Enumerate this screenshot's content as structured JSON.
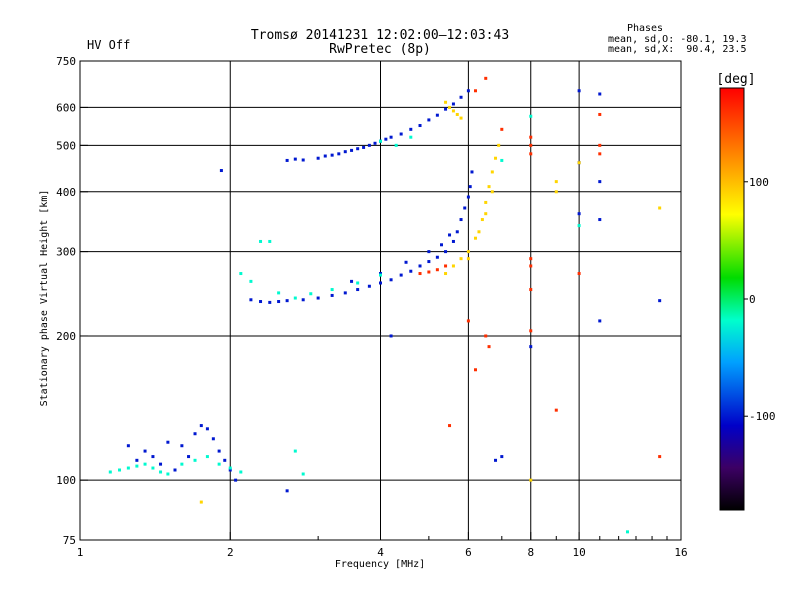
{
  "chart_data": {
    "type": "scatter",
    "title": "Tromsø 20141231 12:02:00–12:03:43",
    "subtitle": "RwPretec (8p)",
    "status_label": "HV Off",
    "status_color": "#ff0000",
    "phase_info": {
      "heading": "Phases",
      "line1": "mean, sd,O: -80.1, 19.3",
      "line2": "mean, sd,X:  90.4, 23.5"
    },
    "xlabel": "Frequency [MHz]",
    "ylabel": "Stationary phase Virtual Height [km]",
    "x_scale": "log",
    "y_scale": "log",
    "xlim": [
      1,
      16
    ],
    "ylim": [
      75,
      750
    ],
    "grid": true,
    "x_ticks": [
      1,
      2,
      4,
      6,
      8,
      10,
      16
    ],
    "x_tick_labels": [
      "1",
      "2",
      "4",
      "6",
      "8",
      "10",
      "16"
    ],
    "x_minor_ticks": [
      3,
      5,
      7,
      9,
      11,
      12,
      13,
      14,
      15
    ],
    "y_ticks": [
      75,
      100,
      200,
      300,
      400,
      500,
      600,
      750
    ],
    "y_tick_labels": [
      "75",
      "100",
      "200",
      "300",
      "400",
      "500",
      "600",
      "750"
    ],
    "colorbar": {
      "label": "[deg]",
      "range": [
        -180,
        180
      ],
      "ticks": [
        100,
        0,
        -100
      ],
      "tick_labels": [
        "100",
        "0",
        "-100"
      ]
    },
    "series": [
      {
        "phase_deg": -100,
        "points": [
          [
            2.6,
            465
          ],
          [
            2.7,
            468
          ],
          [
            2.8,
            466
          ],
          [
            3.0,
            470
          ],
          [
            3.1,
            475
          ],
          [
            3.2,
            477
          ],
          [
            3.3,
            480
          ],
          [
            3.4,
            485
          ],
          [
            3.5,
            488
          ],
          [
            3.6,
            492
          ],
          [
            3.7,
            495
          ],
          [
            3.8,
            500
          ],
          [
            3.9,
            505
          ],
          [
            4.0,
            510
          ],
          [
            4.1,
            515
          ],
          [
            4.2,
            520
          ],
          [
            4.4,
            528
          ],
          [
            4.6,
            540
          ],
          [
            4.8,
            550
          ],
          [
            5.0,
            565
          ],
          [
            5.2,
            578
          ],
          [
            5.4,
            595
          ],
          [
            5.6,
            610
          ],
          [
            5.8,
            630
          ],
          [
            6.0,
            650
          ],
          [
            2.2,
            238
          ],
          [
            2.3,
            236
          ],
          [
            2.4,
            235
          ],
          [
            2.5,
            236
          ],
          [
            2.6,
            237
          ],
          [
            2.8,
            238
          ],
          [
            3.0,
            240
          ],
          [
            3.2,
            243
          ],
          [
            3.4,
            246
          ],
          [
            3.6,
            250
          ],
          [
            3.8,
            254
          ],
          [
            4.0,
            258
          ],
          [
            4.2,
            262
          ],
          [
            4.4,
            268
          ],
          [
            4.6,
            273
          ],
          [
            4.8,
            280
          ],
          [
            5.0,
            286
          ],
          [
            5.2,
            292
          ],
          [
            5.4,
            300
          ],
          [
            5.6,
            315
          ],
          [
            5.7,
            330
          ],
          [
            5.8,
            350
          ],
          [
            5.9,
            370
          ],
          [
            6.0,
            390
          ],
          [
            6.05,
            410
          ],
          [
            6.1,
            440
          ],
          [
            3.5,
            260
          ],
          [
            4.0,
            270
          ],
          [
            4.5,
            285
          ],
          [
            5.0,
            300
          ],
          [
            5.3,
            310
          ],
          [
            5.5,
            325
          ],
          [
            1.25,
            118
          ],
          [
            1.35,
            115
          ],
          [
            1.4,
            112
          ],
          [
            1.5,
            120
          ],
          [
            1.6,
            118
          ],
          [
            1.7,
            125
          ],
          [
            1.75,
            130
          ],
          [
            1.8,
            128
          ],
          [
            1.85,
            122
          ],
          [
            1.9,
            115
          ],
          [
            1.95,
            110
          ],
          [
            2.0,
            105
          ],
          [
            2.05,
            100
          ],
          [
            1.3,
            110
          ],
          [
            1.45,
            108
          ],
          [
            1.55,
            105
          ],
          [
            1.65,
            112
          ],
          [
            4.2,
            200
          ],
          [
            6.8,
            110
          ],
          [
            7.0,
            112
          ],
          [
            8.0,
            190
          ],
          [
            10.0,
            650
          ],
          [
            10.0,
            460
          ],
          [
            11.0,
            640
          ],
          [
            11.0,
            420
          ],
          [
            11.0,
            350
          ],
          [
            11.0,
            215
          ],
          [
            10.0,
            360
          ],
          [
            14.5,
            237
          ],
          [
            1.92,
            443
          ],
          [
            2.6,
            95
          ]
        ]
      },
      {
        "phase_deg": -20,
        "points": [
          [
            1.15,
            104
          ],
          [
            1.2,
            105
          ],
          [
            1.25,
            106
          ],
          [
            1.3,
            107
          ],
          [
            1.35,
            108
          ],
          [
            1.4,
            106
          ],
          [
            1.45,
            104
          ],
          [
            1.5,
            103
          ],
          [
            1.6,
            108
          ],
          [
            1.7,
            110
          ],
          [
            1.8,
            112
          ],
          [
            1.9,
            108
          ],
          [
            2.0,
            106
          ],
          [
            2.1,
            104
          ],
          [
            2.1,
            270
          ],
          [
            2.2,
            260
          ],
          [
            2.3,
            315
          ],
          [
            2.4,
            315
          ],
          [
            2.5,
            246
          ],
          [
            2.7,
            240
          ],
          [
            2.9,
            245
          ],
          [
            3.2,
            250
          ],
          [
            3.6,
            258
          ],
          [
            4.0,
            268
          ],
          [
            4.3,
            500
          ],
          [
            4.6,
            520
          ],
          [
            4.0,
            510
          ],
          [
            2.7,
            115
          ],
          [
            2.8,
            103
          ],
          [
            7.0,
            465
          ],
          [
            8.0,
            575
          ],
          [
            10.0,
            340
          ],
          [
            12.5,
            78
          ]
        ]
      },
      {
        "phase_deg": 90,
        "points": [
          [
            5.4,
            615
          ],
          [
            5.5,
            600
          ],
          [
            5.6,
            590
          ],
          [
            5.7,
            580
          ],
          [
            5.8,
            570
          ],
          [
            5.4,
            270
          ],
          [
            5.6,
            280
          ],
          [
            5.8,
            290
          ],
          [
            6.0,
            300
          ],
          [
            6.2,
            320
          ],
          [
            6.4,
            350
          ],
          [
            6.5,
            380
          ],
          [
            6.6,
            410
          ],
          [
            6.7,
            440
          ],
          [
            6.8,
            470
          ],
          [
            6.9,
            500
          ],
          [
            6.0,
            290
          ],
          [
            6.3,
            330
          ],
          [
            6.5,
            360
          ],
          [
            6.7,
            400
          ],
          [
            1.75,
            90
          ],
          [
            9.0,
            400
          ],
          [
            9.0,
            420
          ],
          [
            10.0,
            460
          ],
          [
            14.5,
            370
          ],
          [
            8.0,
            100
          ]
        ]
      },
      {
        "phase_deg": 160,
        "points": [
          [
            4.8,
            270
          ],
          [
            5.0,
            272
          ],
          [
            5.2,
            275
          ],
          [
            5.4,
            280
          ],
          [
            6.5,
            690
          ],
          [
            6.2,
            650
          ],
          [
            7.0,
            540
          ],
          [
            8.0,
            520
          ],
          [
            8.0,
            500
          ],
          [
            8.0,
            480
          ],
          [
            8.0,
            290
          ],
          [
            8.0,
            280
          ],
          [
            6.0,
            215
          ],
          [
            6.2,
            170
          ],
          [
            6.5,
            200
          ],
          [
            6.6,
            190
          ],
          [
            5.5,
            130
          ],
          [
            8.0,
            205
          ],
          [
            9.0,
            140
          ],
          [
            10.0,
            270
          ],
          [
            11.0,
            580
          ],
          [
            11.0,
            500
          ],
          [
            11.0,
            480
          ],
          [
            14.5,
            112
          ],
          [
            8.0,
            250
          ]
        ]
      }
    ]
  }
}
